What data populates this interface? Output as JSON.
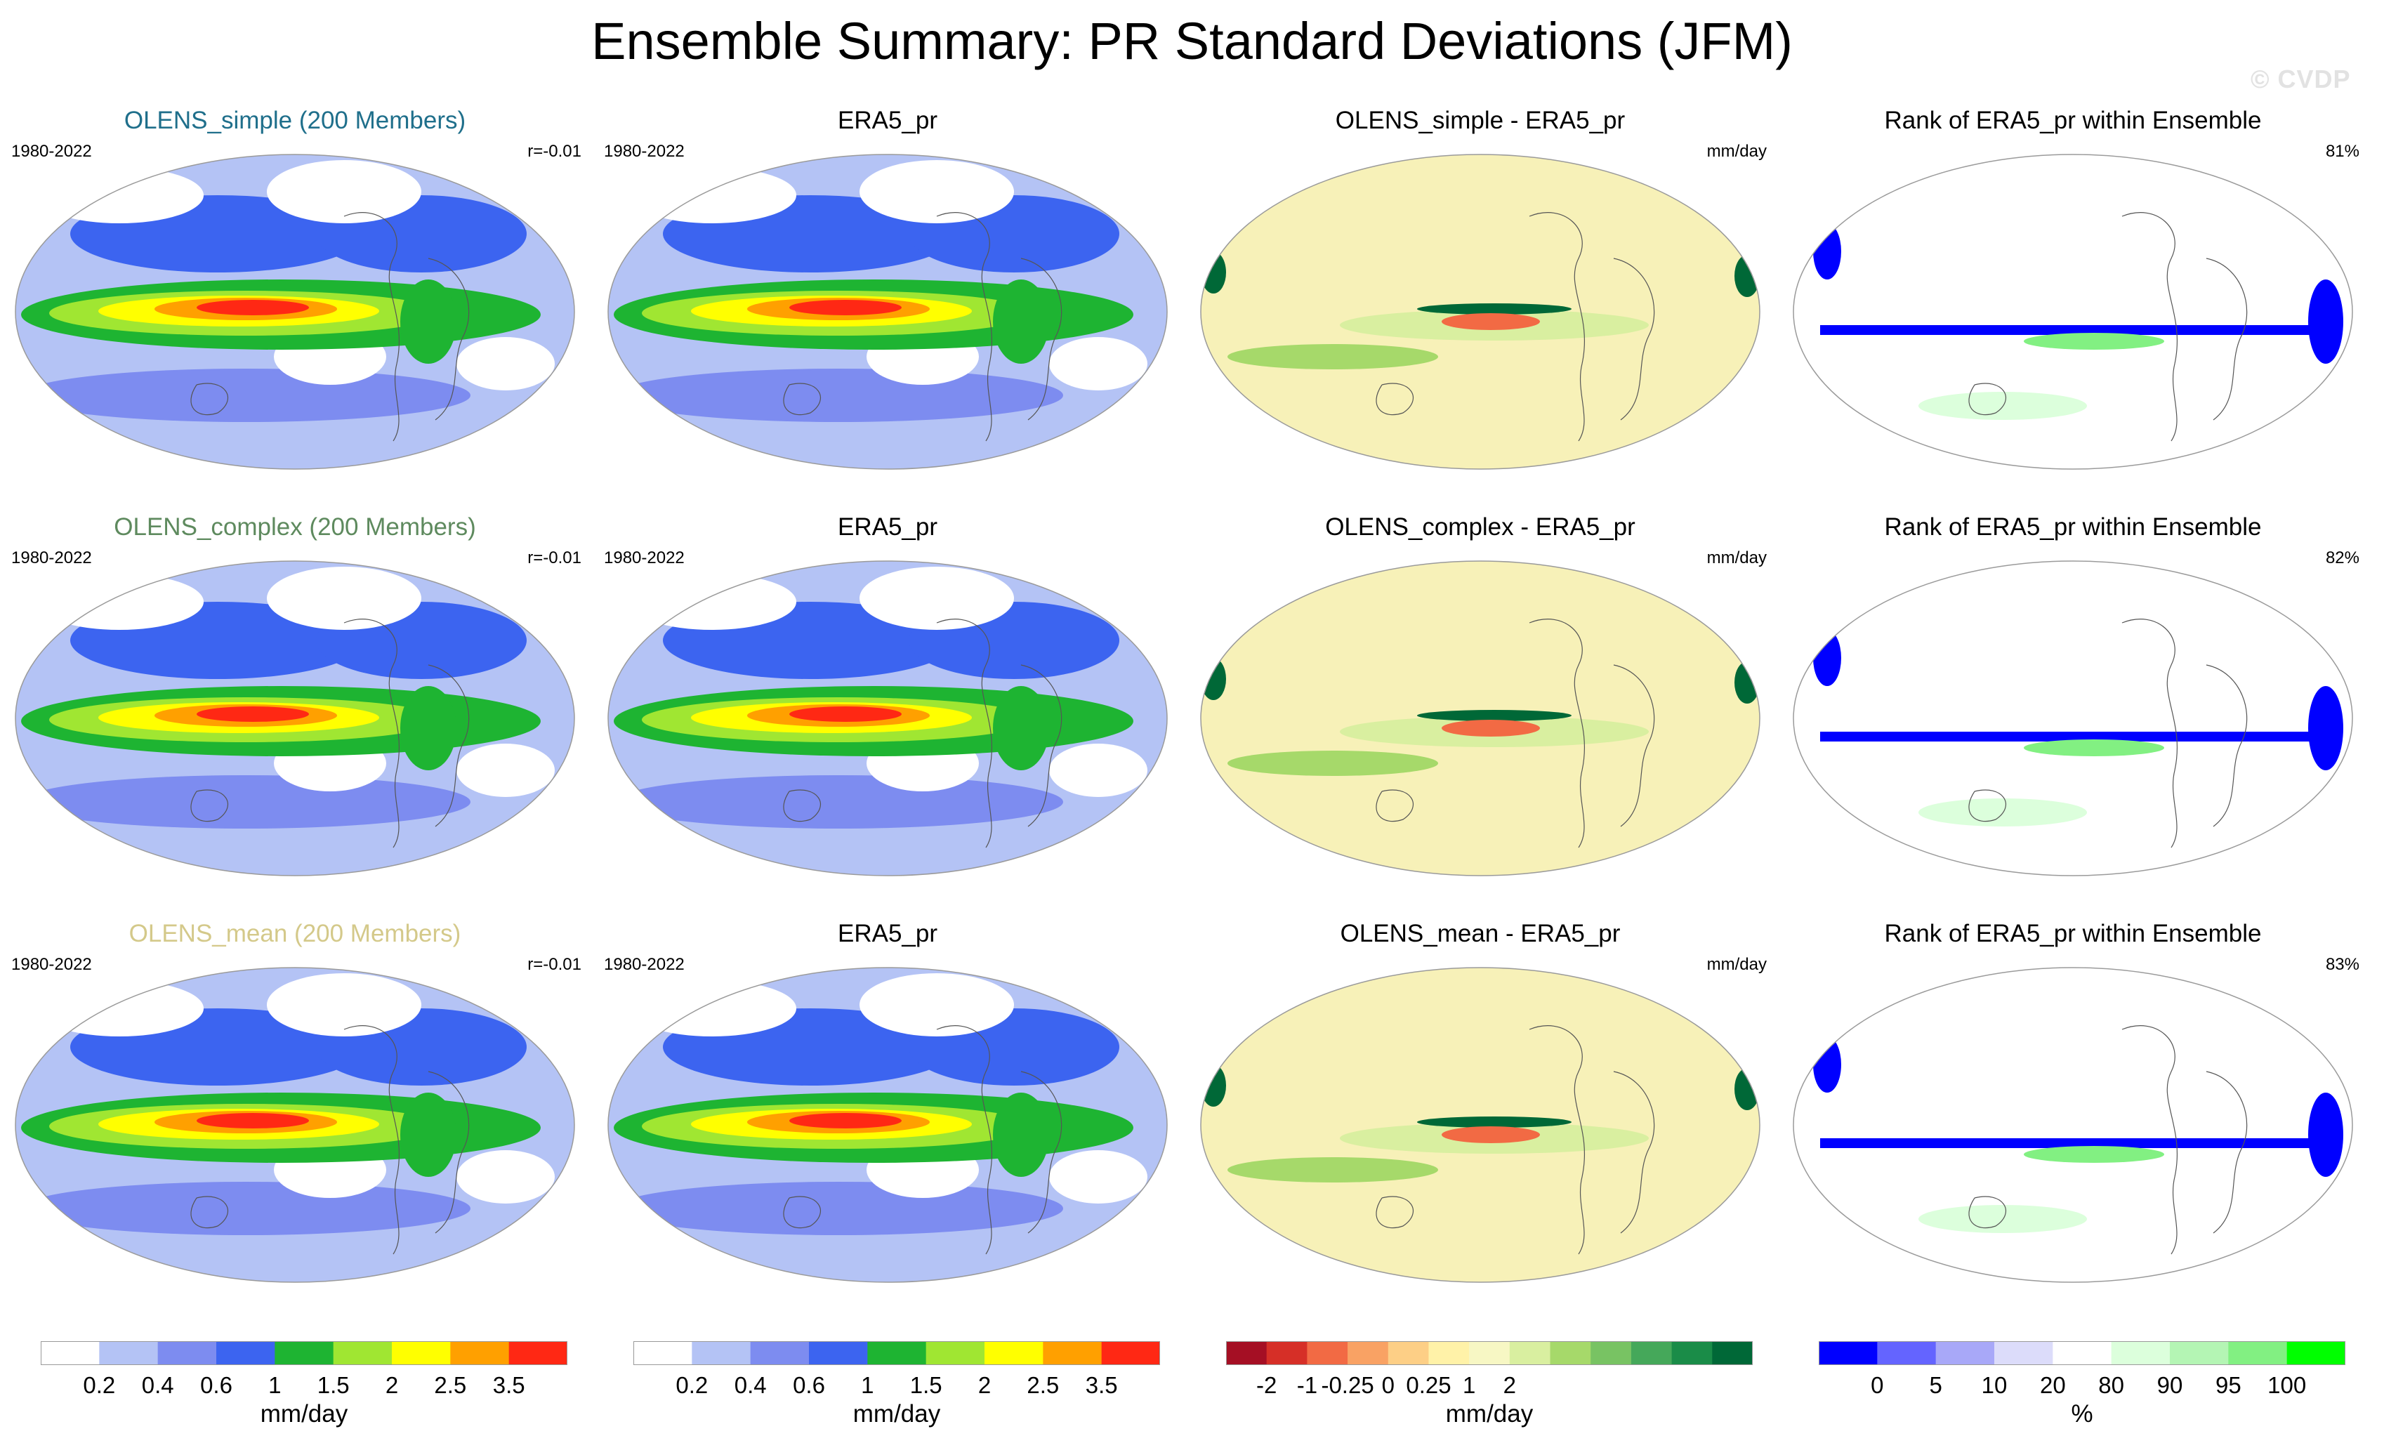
{
  "title": "Ensemble Summary: PR Standard Deviations (JFM)",
  "watermark": "© CVDP",
  "rows": [
    {
      "ensemble": {
        "title": "OLENS_simple (200 Members)",
        "title_color": "#1f6f8b",
        "period": "1980-2022",
        "corr": "r=-0.01"
      },
      "obs": {
        "title": "ERA5_pr",
        "period": "1980-2022"
      },
      "diff": {
        "title": "OLENS_simple - ERA5_pr",
        "units": "mm/day"
      },
      "rank": {
        "title": "Rank of ERA5_pr within Ensemble",
        "pct": "81%"
      }
    },
    {
      "ensemble": {
        "title": "OLENS_complex (200 Members)",
        "title_color": "#5e8a5e",
        "period": "1980-2022",
        "corr": "r=-0.01"
      },
      "obs": {
        "title": "ERA5_pr",
        "period": "1980-2022"
      },
      "diff": {
        "title": "OLENS_complex - ERA5_pr",
        "units": "mm/day"
      },
      "rank": {
        "title": "Rank of ERA5_pr within Ensemble",
        "pct": "82%"
      }
    },
    {
      "ensemble": {
        "title": "OLENS_mean (200 Members)",
        "title_color": "#d4c98a",
        "period": "1980-2022",
        "corr": "r=-0.01"
      },
      "obs": {
        "title": "ERA5_pr",
        "period": "1980-2022"
      },
      "diff": {
        "title": "OLENS_mean - ERA5_pr",
        "units": "mm/day"
      },
      "rank": {
        "title": "Rank of ERA5_pr within Ensemble",
        "pct": "83%"
      }
    }
  ],
  "colorbars": {
    "stddev": {
      "unit": "mm/day",
      "colors": [
        "#ffffff",
        "#b4c3f5",
        "#7d8cf0",
        "#3c64f0",
        "#1eb432",
        "#a0e632",
        "#ffff00",
        "#ffa000",
        "#ff2814"
      ],
      "ticks": [
        "0.2",
        "0.4",
        "0.6",
        "1",
        "1.5",
        "2",
        "2.5",
        "3.5"
      ]
    },
    "difference": {
      "unit": "mm/day",
      "colors": [
        "#a50f24",
        "#d62f27",
        "#f26a44",
        "#f9a264",
        "#fdcf86",
        "#fff2a8",
        "#f7f7c4",
        "#d9efa0",
        "#a6d96a",
        "#78c363",
        "#45a85a",
        "#1a8c48",
        "#006837"
      ],
      "ticks": [
        "-2",
        "-1",
        "-0.25",
        "0",
        "0.25",
        "1",
        "2"
      ]
    },
    "rank": {
      "unit": "%",
      "colors": [
        "#0000ff",
        "#6464ff",
        "#a8a8f8",
        "#dcdcfa",
        "#ffffff",
        "#dcffdc",
        "#b4f5b4",
        "#82f082",
        "#00ff00"
      ],
      "ticks": [
        "0",
        "5",
        "10",
        "20",
        "80",
        "90",
        "95",
        "100"
      ]
    }
  },
  "map_styles": {
    "stddev": {
      "ocean": "#b4c3f5",
      "equator": "#1eb432",
      "core": "#ff2814"
    },
    "difference": {
      "background": "#f7f1b8",
      "pos": "#006837",
      "neg": "#f26a44"
    },
    "rank": {
      "background": "#ffffff",
      "low": "#0000ff",
      "high": "#82f082"
    }
  }
}
